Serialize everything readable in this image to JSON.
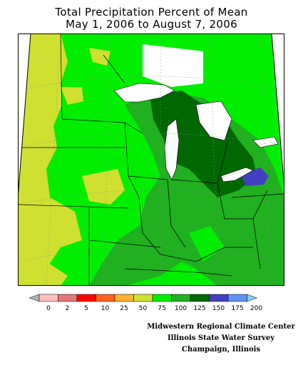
{
  "map": {
    "title_line1": "Total Precipitation Percent of Mean",
    "title_line2": "May 1, 2006 to August 7, 2006"
  },
  "legend": {
    "labels": [
      "0",
      "2",
      "5",
      "10",
      "25",
      "50",
      "75",
      "100",
      "125",
      "150",
      "175",
      "200"
    ],
    "colors": [
      "#b4b4b4",
      "#ffc0c0",
      "#e07878",
      "#ff0000",
      "#ff6020",
      "#ffb030",
      "#d0e030",
      "#00ee00",
      "#20b020",
      "#006800",
      "#4040c0",
      "#6090f0",
      "#80d0f8"
    ]
  },
  "colors": {
    "lake": "#ffffff",
    "outside": "#ffffff",
    "border": "#000000",
    "grid": "#909090"
  },
  "credits": {
    "line1": "Midwestern Regional Climate Center",
    "line2": "Illinois State Water Survey",
    "line3": "Champaign, Illinois"
  }
}
